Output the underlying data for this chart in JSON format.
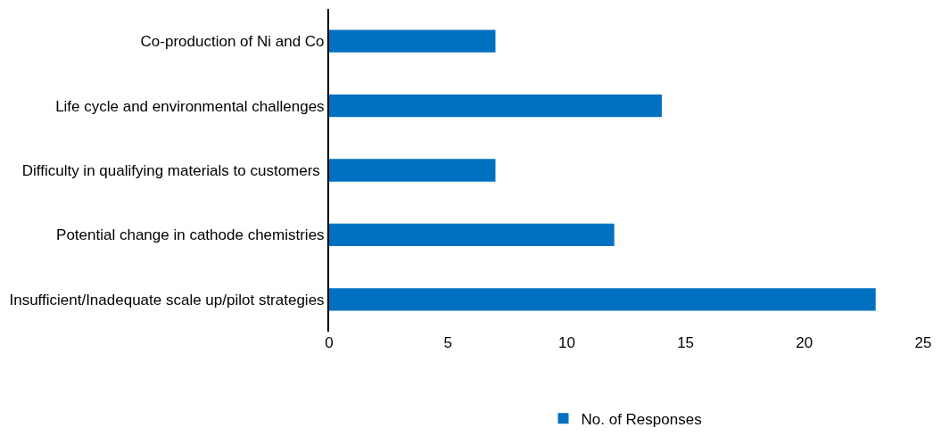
{
  "chart_data": {
    "type": "bar",
    "orientation": "horizontal",
    "categories": [
      "Co-production of Ni and Co",
      "Life cycle and environmental challenges",
      "Difficulty in qualifying materials to customers ",
      "Potential change in cathode chemistries",
      "Insufficient/Inadequate scale up/pilot strategies"
    ],
    "series": [
      {
        "name": "No. of Responses",
        "color": "#0070c0",
        "values": [
          7,
          14,
          7,
          12,
          23
        ]
      }
    ],
    "xlim": [
      0,
      25
    ],
    "xticks": [
      0,
      5,
      10,
      15,
      20,
      25
    ],
    "legend": "bottom"
  }
}
